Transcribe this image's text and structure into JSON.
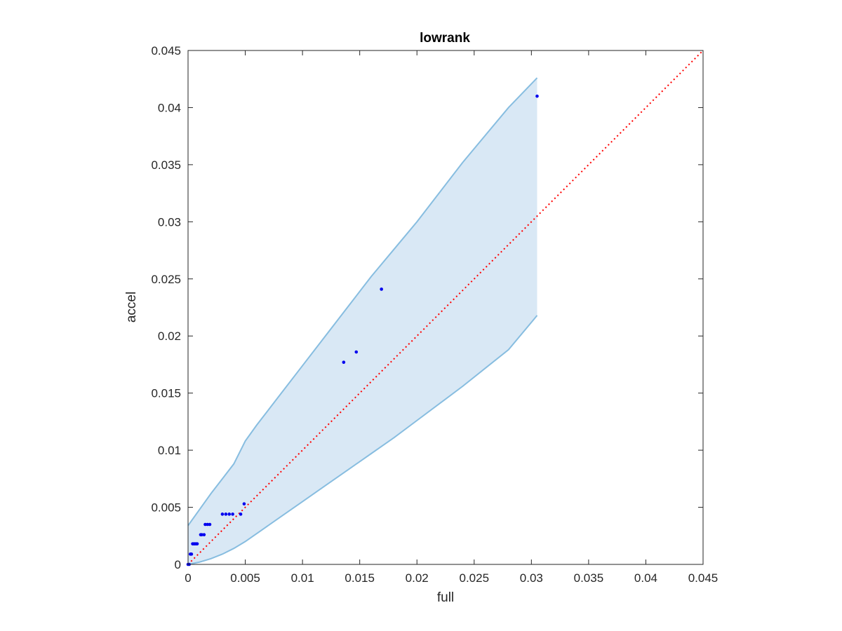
{
  "chart_data": {
    "type": "scatter",
    "title": "lowrank",
    "xlabel": "full",
    "ylabel": "accel",
    "xlim": [
      0,
      0.045
    ],
    "ylim": [
      0,
      0.045
    ],
    "grid": false,
    "xticks": [
      "0",
      "0.005",
      "0.01",
      "0.015",
      "0.02",
      "0.025",
      "0.03",
      "0.035",
      "0.04",
      "0.045"
    ],
    "yticks": [
      "0",
      "0.005",
      "0.01",
      "0.015",
      "0.02",
      "0.025",
      "0.03",
      "0.035",
      "0.04",
      "0.045"
    ],
    "points": {
      "color": "#0000ee",
      "x": [
        0,
        0.0001,
        0.0002,
        0.0003,
        0.0004,
        0.0005,
        0.0006,
        0.0007,
        0.0008,
        0.0011,
        0.0012,
        0.0014,
        0.0015,
        0.0017,
        0.0019,
        0.003,
        0.0033,
        0.0036,
        0.0039,
        0.0046,
        0.0049,
        0.0136,
        0.0147,
        0.0169,
        0.0305
      ],
      "y": [
        0,
        0,
        0.0009,
        0.0009,
        0.0018,
        0.0018,
        0.0018,
        0.0018,
        0.0018,
        0.0026,
        0.0026,
        0.0026,
        0.0035,
        0.0035,
        0.0035,
        0.0044,
        0.0044,
        0.0044,
        0.0044,
        0.0044,
        0.0053,
        0.0177,
        0.0186,
        0.0241,
        0.041
      ]
    },
    "reference_line": {
      "color": "#ff0000",
      "style": "dotted",
      "x": [
        0,
        0.045
      ],
      "y": [
        0,
        0.045
      ]
    },
    "band": {
      "fill": "#d9e8f5",
      "edge": "#87bde0",
      "x": [
        0,
        0.001,
        0.002,
        0.003,
        0.004,
        0.005,
        0.006,
        0.008,
        0.01,
        0.012,
        0.014,
        0.016,
        0.018,
        0.02,
        0.022,
        0.024,
        0.026,
        0.028,
        0.0305
      ],
      "upper": [
        0.0034,
        0.0048,
        0.0062,
        0.0075,
        0.0088,
        0.0108,
        0.0122,
        0.0148,
        0.0174,
        0.02,
        0.0226,
        0.0252,
        0.0276,
        0.03,
        0.0326,
        0.0352,
        0.0376,
        0.04,
        0.0426
      ],
      "lower": [
        0,
        0.0002,
        0.0005,
        0.0009,
        0.0014,
        0.002,
        0.0027,
        0.0041,
        0.0055,
        0.0069,
        0.0083,
        0.0097,
        0.0111,
        0.0126,
        0.0141,
        0.0156,
        0.0172,
        0.0188,
        0.0218
      ]
    }
  }
}
